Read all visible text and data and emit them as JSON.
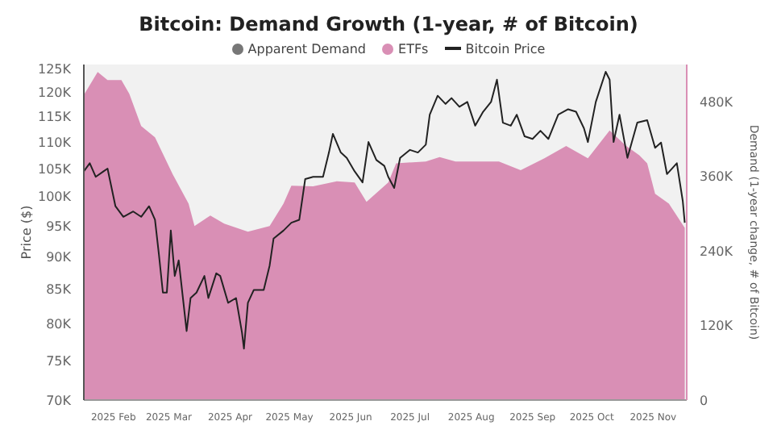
{
  "chart_data": {
    "type": "area",
    "title": "Bitcoin: Demand Growth (1-year, # of Bitcoin)",
    "ylabel": "Price ($)",
    "y2label": "Demand (1-year change, # of Bitcoin)",
    "legend": "top",
    "log": "y",
    "grid": false,
    "xlim": [
      "2025-01-17",
      "2025-11-18"
    ],
    "xticks": [
      {
        "value": "2025-02",
        "label": "2025 Feb"
      },
      {
        "value": "2025-03",
        "label": "2025 Mar"
      },
      {
        "value": "2025-04",
        "label": "2025 Apr"
      },
      {
        "value": "2025-05",
        "label": "2025 May"
      },
      {
        "value": "2025-06",
        "label": "2025 Jun"
      },
      {
        "value": "2025-07",
        "label": "2025 Jul"
      },
      {
        "value": "2025-08",
        "label": "2025 Aug"
      },
      {
        "value": "2025-09",
        "label": "2025 Sep"
      },
      {
        "value": "2025-10",
        "label": "2025 Oct"
      },
      {
        "value": "2025-11",
        "label": "2025 Nov"
      }
    ],
    "ylim": [
      70000,
      126000
    ],
    "yticks": [
      {
        "value": 70000,
        "label": "70K"
      },
      {
        "value": 75000,
        "label": "75K"
      },
      {
        "value": 80000,
        "label": "80K"
      },
      {
        "value": 85000,
        "label": "85K"
      },
      {
        "value": 90000,
        "label": "90K"
      },
      {
        "value": 95000,
        "label": "95K"
      },
      {
        "value": 100000,
        "label": "100K"
      },
      {
        "value": 105000,
        "label": "105K"
      },
      {
        "value": 110000,
        "label": "110K"
      },
      {
        "value": 115000,
        "label": "115K"
      },
      {
        "value": 120000,
        "label": "120K"
      },
      {
        "value": 125000,
        "label": "125K"
      }
    ],
    "y2lim": [
      0,
      540000
    ],
    "y2ticks": [
      0,
      {
        "value": 120000,
        "label": "120K"
      },
      {
        "value": 240000,
        "label": "240K"
      },
      {
        "value": 360000,
        "label": "360K"
      },
      {
        "value": 480000,
        "label": "480K"
      }
    ],
    "series": [
      {
        "name": "Apparent Demand",
        "type": "area",
        "axis": "y2",
        "color": "#777777"
      },
      {
        "name": "ETFs",
        "type": "area",
        "axis": "y2",
        "color": "#d98fb5",
        "x": [
          "2025-01-17",
          "2025-01-24",
          "2025-01-29",
          "2025-02-05",
          "2025-02-09",
          "2025-02-15",
          "2025-02-22",
          "2025-03-03",
          "2025-03-11",
          "2025-03-14",
          "2025-03-22",
          "2025-03-29",
          "2025-04-10",
          "2025-04-21",
          "2025-04-28",
          "2025-05-02",
          "2025-05-13",
          "2025-05-25",
          "2025-06-03",
          "2025-06-09",
          "2025-06-20",
          "2025-06-24",
          "2025-07-09",
          "2025-07-16",
          "2025-07-24",
          "2025-07-31",
          "2025-08-15",
          "2025-08-26",
          "2025-09-07",
          "2025-09-18",
          "2025-09-29",
          "2025-10-10",
          "2025-10-18",
          "2025-10-25",
          "2025-10-29",
          "2025-11-02",
          "2025-11-09",
          "2025-11-17"
        ],
        "values": [
          491000,
          528000,
          515000,
          515000,
          493000,
          441000,
          423000,
          363000,
          316000,
          280000,
          297000,
          284000,
          271000,
          280000,
          316000,
          345000,
          344000,
          352000,
          350000,
          319000,
          350000,
          381000,
          384000,
          391000,
          384000,
          384000,
          384000,
          370000,
          389000,
          409000,
          389000,
          434000,
          410000,
          394000,
          381000,
          332000,
          316000,
          277000
        ]
      },
      {
        "name": "Bitcoin Price",
        "type": "line",
        "axis": "y",
        "color": "#222222",
        "x": [
          "2025-01-17",
          "2025-01-20",
          "2025-01-23",
          "2025-01-27",
          "2025-01-29",
          "2025-02-02",
          "2025-02-06",
          "2025-02-11",
          "2025-02-15",
          "2025-02-19",
          "2025-02-22",
          "2025-02-24",
          "2025-02-26",
          "2025-02-28",
          "2025-03-02",
          "2025-03-04",
          "2025-03-06",
          "2025-03-10",
          "2025-03-12",
          "2025-03-15",
          "2025-03-19",
          "2025-03-21",
          "2025-03-25",
          "2025-03-27",
          "2025-03-31",
          "2025-04-04",
          "2025-04-07",
          "2025-04-08",
          "2025-04-10",
          "2025-04-13",
          "2025-04-18",
          "2025-04-21",
          "2025-04-23",
          "2025-04-28",
          "2025-05-02",
          "2025-05-06",
          "2025-05-09",
          "2025-05-13",
          "2025-05-18",
          "2025-05-21",
          "2025-05-23",
          "2025-05-27",
          "2025-05-30",
          "2025-06-03",
          "2025-06-07",
          "2025-06-10",
          "2025-06-14",
          "2025-06-18",
          "2025-06-20",
          "2025-06-23",
          "2025-06-26",
          "2025-07-01",
          "2025-07-05",
          "2025-07-09",
          "2025-07-11",
          "2025-07-15",
          "2025-07-19",
          "2025-07-22",
          "2025-07-26",
          "2025-07-30",
          "2025-08-03",
          "2025-08-07",
          "2025-08-11",
          "2025-08-14",
          "2025-08-17",
          "2025-08-21",
          "2025-08-24",
          "2025-08-28",
          "2025-09-01",
          "2025-09-05",
          "2025-09-09",
          "2025-09-14",
          "2025-09-19",
          "2025-09-23",
          "2025-09-27",
          "2025-09-29",
          "2025-10-03",
          "2025-10-08",
          "2025-10-10",
          "2025-10-12",
          "2025-10-15",
          "2025-10-19",
          "2025-10-24",
          "2025-10-29",
          "2025-11-02",
          "2025-11-05",
          "2025-11-08",
          "2025-11-13",
          "2025-11-16",
          "2025-11-17"
        ],
        "values": [
          104500,
          106000,
          103500,
          104500,
          105000,
          98300,
          96500,
          97400,
          96500,
          98300,
          96000,
          90300,
          84500,
          84500,
          94200,
          87000,
          89400,
          79000,
          83700,
          84500,
          87000,
          83700,
          87400,
          87000,
          83000,
          83700,
          78800,
          76600,
          83000,
          84900,
          84900,
          88600,
          92900,
          94200,
          95500,
          96000,
          103100,
          103500,
          103500,
          108000,
          111600,
          108000,
          107000,
          104500,
          102500,
          110000,
          106600,
          105500,
          103500,
          101500,
          107000,
          108500,
          108000,
          109500,
          115400,
          119300,
          117600,
          118800,
          117000,
          118000,
          113200,
          116000,
          118000,
          122700,
          113800,
          113200,
          115400,
          111100,
          110600,
          112200,
          110600,
          115400,
          116500,
          116000,
          112700,
          110000,
          118000,
          124400,
          122700,
          110000,
          115400,
          107000,
          113800,
          114300,
          108900,
          109900,
          104000,
          106000,
          99200,
          95500
        ]
      }
    ]
  }
}
